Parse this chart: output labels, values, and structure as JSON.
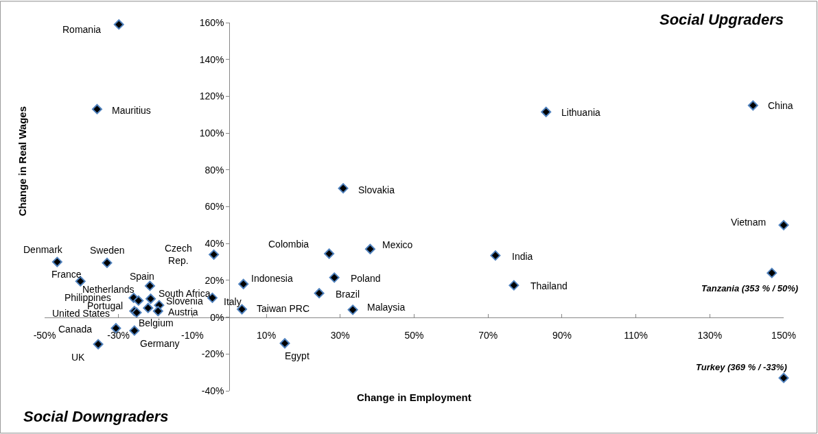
{
  "chart_data": {
    "type": "scatter",
    "xlabel": "Change in Employment",
    "ylabel": "Change in Real Wages",
    "xlim": [
      -50,
      150
    ],
    "ylim": [
      -40,
      160
    ],
    "xticks": [
      {
        "value": -50,
        "label": "-50%"
      },
      {
        "value": -30,
        "label": "-30%"
      },
      {
        "value": -10,
        "label": "-10%"
      },
      {
        "value": 10,
        "label": "10%"
      },
      {
        "value": 30,
        "label": "30%"
      },
      {
        "value": 50,
        "label": "50%"
      },
      {
        "value": 70,
        "label": "70%"
      },
      {
        "value": 90,
        "label": "90%"
      },
      {
        "value": 110,
        "label": "110%"
      },
      {
        "value": 130,
        "label": "130%"
      },
      {
        "value": 150,
        "label": "150%"
      }
    ],
    "yticks": [
      {
        "value": -40,
        "label": "-40%"
      },
      {
        "value": -20,
        "label": "-20%"
      },
      {
        "value": 0,
        "label": "0%"
      },
      {
        "value": 20,
        "label": "20%"
      },
      {
        "value": 40,
        "label": "40%"
      },
      {
        "value": 60,
        "label": "60%"
      },
      {
        "value": 80,
        "label": "80%"
      },
      {
        "value": 100,
        "label": "100%"
      },
      {
        "value": 120,
        "label": "120%"
      },
      {
        "value": 140,
        "label": "140%"
      },
      {
        "value": 160,
        "label": "160%"
      }
    ],
    "marker": "diamond",
    "series": [
      {
        "color": "#000000",
        "x": [
          -29.9,
          -35.8,
          85.7,
          141.7,
          30.8,
          150,
          146.8,
          150,
          -46.6,
          -33.1,
          -4.2,
          -40.3,
          -21.5,
          -25.9,
          -24.6,
          -21.3,
          -19.0,
          -22.0,
          -25.7,
          -25.1,
          -19.3,
          -4.6,
          -30.7,
          -25.7,
          -35.5,
          3.4,
          3.8,
          27.0,
          38.1,
          72.0,
          28.4,
          24.3,
          77.0,
          33.4,
          15.0
        ],
        "values": [
          159,
          113,
          111.5,
          115,
          70,
          50,
          24,
          -33,
          30,
          29.5,
          34,
          19.5,
          17,
          10.5,
          9,
          10,
          6.5,
          5,
          3.3,
          2.5,
          3.3,
          10.5,
          -6,
          -7.3,
          -14.7,
          4.3,
          18,
          34.5,
          37,
          33.5,
          21.5,
          13,
          17.3,
          4,
          -14.2
        ]
      }
    ],
    "annotations": [
      {
        "text": "Romania",
        "x": -29.9,
        "y": 159
      },
      {
        "text": "Mauritius",
        "x": -35.8,
        "y": 113
      },
      {
        "text": "Lithuania",
        "x": 85.7,
        "y": 111.5
      },
      {
        "text": "China",
        "x": 141.7,
        "y": 115
      },
      {
        "text": "Slovakia",
        "x": 30.8,
        "y": 70
      },
      {
        "text": "Vietnam",
        "x": 150,
        "y": 50
      },
      {
        "text": "Tanzania (353 % / 50%)",
        "x": 146.8,
        "y": 24
      },
      {
        "text": "Turkey (369 % / -33%)",
        "x": 150,
        "y": -33
      },
      {
        "text": "Denmark",
        "x": -46.6,
        "y": 30
      },
      {
        "text": "Sweden",
        "x": -33.1,
        "y": 29.5
      },
      {
        "text": "Czech Rep.",
        "x": -4.2,
        "y": 34
      },
      {
        "text": "France",
        "x": -40.3,
        "y": 19.5
      },
      {
        "text": "Spain",
        "x": -21.5,
        "y": 17
      },
      {
        "text": "Netherlands",
        "x": -25.9,
        "y": 10.5
      },
      {
        "text": "Philippines",
        "x": -24.6,
        "y": 9
      },
      {
        "text": "South Africa",
        "x": -21.3,
        "y": 10
      },
      {
        "text": "Slovenia",
        "x": -19.0,
        "y": 6.5
      },
      {
        "text": "Portugal",
        "x": -22.0,
        "y": 5
      },
      {
        "text": "United States",
        "x": -25.7,
        "y": 3.3
      },
      {
        "text": "Belgium",
        "x": -25.1,
        "y": 2.5
      },
      {
        "text": "Austria",
        "x": -19.3,
        "y": 3.3
      },
      {
        "text": "Italy",
        "x": -4.6,
        "y": 10.5
      },
      {
        "text": "Canada",
        "x": -30.7,
        "y": -6
      },
      {
        "text": "Germany",
        "x": -25.7,
        "y": -7.3
      },
      {
        "text": "UK",
        "x": -35.5,
        "y": -14.7
      },
      {
        "text": "Taiwan PRC",
        "x": 3.4,
        "y": 4.3
      },
      {
        "text": "Indonesia",
        "x": 3.8,
        "y": 18
      },
      {
        "text": "Colombia",
        "x": 27.0,
        "y": 34.5
      },
      {
        "text": "Mexico",
        "x": 38.1,
        "y": 37
      },
      {
        "text": "India",
        "x": 72.0,
        "y": 33.5
      },
      {
        "text": "Poland",
        "x": 28.4,
        "y": 21.5
      },
      {
        "text": "Brazil",
        "x": 24.3,
        "y": 13
      },
      {
        "text": "Thailand",
        "x": 77.0,
        "y": 17.3
      },
      {
        "text": "Malaysia",
        "x": 33.4,
        "y": 4
      },
      {
        "text": "Egypt",
        "x": 15.0,
        "y": -14.2
      },
      "Social Upgraders",
      "Social Downgraders"
    ]
  }
}
